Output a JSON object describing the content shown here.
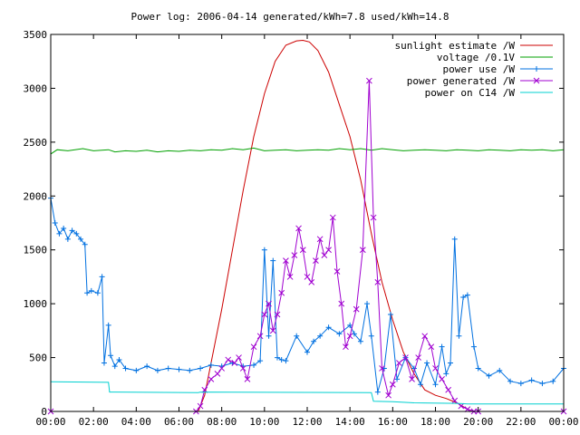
{
  "chart_data": {
    "type": "line",
    "title": "Power log: 2006-04-14 generated/kWh=7.8 used/kWh=14.8",
    "xlabel": "",
    "ylabel": "",
    "xlim": [
      0,
      24
    ],
    "ylim": [
      0,
      3500
    ],
    "grid": false,
    "legend_position": "top-right",
    "x_ticks": [
      {
        "value": 0,
        "label": "00:00"
      },
      {
        "value": 2,
        "label": "02:00"
      },
      {
        "value": 4,
        "label": "04:00"
      },
      {
        "value": 6,
        "label": "06:00"
      },
      {
        "value": 8,
        "label": "08:00"
      },
      {
        "value": 10,
        "label": "10:00"
      },
      {
        "value": 12,
        "label": "12:00"
      },
      {
        "value": 14,
        "label": "14:00"
      },
      {
        "value": 16,
        "label": "16:00"
      },
      {
        "value": 18,
        "label": "18:00"
      },
      {
        "value": 20,
        "label": "20:00"
      },
      {
        "value": 22,
        "label": "22:00"
      },
      {
        "value": 24,
        "label": "00:00"
      }
    ],
    "y_ticks": [
      {
        "value": 0,
        "label": "0"
      },
      {
        "value": 500,
        "label": "500"
      },
      {
        "value": 1000,
        "label": "1000"
      },
      {
        "value": 1500,
        "label": "1500"
      },
      {
        "value": 2000,
        "label": "2000"
      },
      {
        "value": 2500,
        "label": "2500"
      },
      {
        "value": 3000,
        "label": "3000"
      },
      {
        "value": 3500,
        "label": "3500"
      }
    ],
    "series": [
      {
        "name": "sunlight estimate /W",
        "color": "#cc0000",
        "marker": "none",
        "x": [
          0,
          6.9,
          7.2,
          7.5,
          8.0,
          8.5,
          9.0,
          9.5,
          10.0,
          10.5,
          11.0,
          11.5,
          11.8,
          12.1,
          12.5,
          13.0,
          13.5,
          14.0,
          14.5,
          15.0,
          15.5,
          16.0,
          16.5,
          17.0,
          17.5,
          18.0,
          18.5,
          19.0,
          19.5,
          19.8,
          20.0,
          24
        ],
        "y": [
          0,
          0,
          150,
          450,
          950,
          1500,
          2050,
          2550,
          2950,
          3250,
          3400,
          3440,
          3445,
          3430,
          3350,
          3150,
          2850,
          2550,
          2150,
          1650,
          1200,
          850,
          550,
          350,
          200,
          150,
          120,
          80,
          20,
          0,
          0,
          0
        ]
      },
      {
        "name": "voltage /0.1V",
        "color": "#00a000",
        "marker": "none",
        "x": [
          0,
          0.3,
          0.8,
          1.5,
          2.0,
          2.7,
          3.0,
          3.5,
          4.0,
          4.5,
          5.0,
          5.5,
          6.0,
          6.5,
          7.0,
          7.5,
          8.0,
          8.5,
          9.0,
          9.5,
          10.0,
          10.5,
          11.0,
          11.5,
          12.0,
          12.5,
          13.0,
          13.5,
          14.0,
          14.5,
          15.0,
          15.5,
          16.0,
          16.5,
          17.0,
          17.5,
          18.0,
          18.5,
          19.0,
          19.5,
          20.0,
          20.5,
          21.0,
          21.5,
          22.0,
          22.5,
          23.0,
          23.5,
          24.0
        ],
        "y": [
          2390,
          2430,
          2420,
          2440,
          2420,
          2430,
          2410,
          2420,
          2415,
          2425,
          2410,
          2420,
          2415,
          2425,
          2420,
          2430,
          2425,
          2440,
          2430,
          2445,
          2420,
          2425,
          2430,
          2420,
          2425,
          2430,
          2425,
          2440,
          2430,
          2440,
          2425,
          2440,
          2430,
          2420,
          2425,
          2430,
          2425,
          2420,
          2430,
          2425,
          2420,
          2430,
          2425,
          2420,
          2430,
          2425,
          2430,
          2420,
          2430
        ]
      },
      {
        "name": "power use /W",
        "color": "#0070e0",
        "marker": "+",
        "x": [
          0,
          0.2,
          0.4,
          0.6,
          0.8,
          1.0,
          1.2,
          1.4,
          1.6,
          1.7,
          1.9,
          2.2,
          2.4,
          2.5,
          2.7,
          2.8,
          3.0,
          3.2,
          3.5,
          4.0,
          4.5,
          5.0,
          5.5,
          6.0,
          6.5,
          7.0,
          7.5,
          8.0,
          8.5,
          9.0,
          9.5,
          9.8,
          10.0,
          10.2,
          10.4,
          10.6,
          10.8,
          11.0,
          11.5,
          12.0,
          12.3,
          12.6,
          13.0,
          13.5,
          14.0,
          14.2,
          14.5,
          14.8,
          15.0,
          15.3,
          15.6,
          15.9,
          16.2,
          16.6,
          17.0,
          17.3,
          17.6,
          18.0,
          18.3,
          18.5,
          18.7,
          18.9,
          19.1,
          19.3,
          19.5,
          19.8,
          20.0,
          20.5,
          21.0,
          21.5,
          22.0,
          22.5,
          23.0,
          23.5,
          24.0
        ],
        "y": [
          1980,
          1750,
          1650,
          1700,
          1600,
          1680,
          1650,
          1600,
          1550,
          1100,
          1120,
          1100,
          1250,
          450,
          800,
          520,
          420,
          480,
          400,
          380,
          420,
          380,
          400,
          390,
          380,
          400,
          430,
          420,
          450,
          420,
          430,
          470,
          1500,
          700,
          1400,
          500,
          480,
          470,
          700,
          550,
          650,
          700,
          780,
          720,
          800,
          720,
          650,
          1000,
          700,
          180,
          400,
          900,
          300,
          500,
          400,
          250,
          450,
          250,
          600,
          350,
          450,
          1600,
          700,
          1060,
          1080,
          600,
          400,
          330,
          380,
          280,
          260,
          290,
          260,
          280,
          400
        ]
      },
      {
        "name": "power generated /W",
        "color": "#a000d0",
        "marker": "x",
        "x": [
          0,
          6.8,
          7.0,
          7.2,
          7.5,
          7.8,
          8.0,
          8.3,
          8.6,
          8.8,
          9.0,
          9.2,
          9.5,
          9.8,
          10.0,
          10.2,
          10.4,
          10.6,
          10.8,
          11.0,
          11.2,
          11.4,
          11.6,
          11.8,
          12.0,
          12.2,
          12.4,
          12.6,
          12.8,
          13.0,
          13.2,
          13.4,
          13.6,
          13.8,
          14.0,
          14.3,
          14.6,
          14.9,
          15.1,
          15.3,
          15.5,
          15.8,
          16.0,
          16.3,
          16.6,
          16.9,
          17.2,
          17.5,
          17.8,
          18.0,
          18.3,
          18.6,
          18.9,
          19.2,
          19.5,
          19.8,
          20.0,
          24.0
        ],
        "y": [
          0,
          0,
          50,
          200,
          300,
          350,
          400,
          480,
          450,
          500,
          400,
          300,
          600,
          700,
          900,
          1000,
          750,
          900,
          1100,
          1400,
          1250,
          1450,
          1700,
          1500,
          1250,
          1200,
          1400,
          1600,
          1450,
          1500,
          1800,
          1300,
          1000,
          600,
          700,
          950,
          1500,
          3070,
          1800,
          1200,
          400,
          150,
          250,
          450,
          500,
          300,
          500,
          700,
          600,
          400,
          300,
          200,
          100,
          50,
          20,
          0,
          0,
          0
        ]
      },
      {
        "name": "power on C14 /W",
        "color": "#00d0d0",
        "marker": "none",
        "x": [
          0,
          2.7,
          2.75,
          6.9,
          7.0,
          15.0,
          15.1,
          16.0,
          17.0,
          19.0,
          19.5,
          20.0,
          24.0
        ],
        "y": [
          275,
          270,
          180,
          175,
          180,
          175,
          95,
          90,
          80,
          75,
          70,
          70,
          70
        ]
      }
    ]
  }
}
